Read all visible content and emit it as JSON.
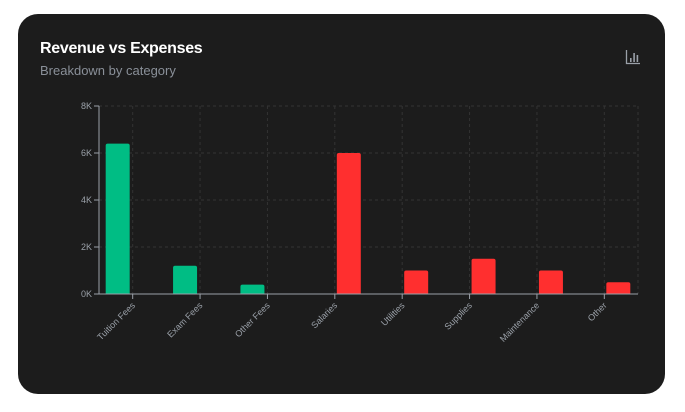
{
  "header": {
    "title": "Revenue vs Expenses",
    "subtitle": "Breakdown by category",
    "icon": "bar-chart-icon"
  },
  "colors": {
    "revenue": "#00bd84",
    "expense": "#ff2f2f",
    "background": "#1c1c1c"
  },
  "chart_data": {
    "type": "bar",
    "categories": [
      "Tuition Fees",
      "Exam Fees",
      "Other Fees",
      "Salaries",
      "Utilities",
      "Supplies",
      "Maintenance",
      "Other"
    ],
    "series": [
      {
        "values": [
          6400,
          1200,
          400,
          0,
          0,
          0,
          0,
          0
        ],
        "color": "#00bd84"
      },
      {
        "values": [
          0,
          0,
          0,
          6000,
          1000,
          1500,
          1000,
          500
        ],
        "color": "#ff2f2f"
      }
    ],
    "ylim": [
      0,
      8000
    ],
    "yticks": [
      "0K",
      "2K",
      "4K",
      "6K",
      "8K"
    ],
    "grid": true,
    "xlabel": "",
    "ylabel": ""
  }
}
